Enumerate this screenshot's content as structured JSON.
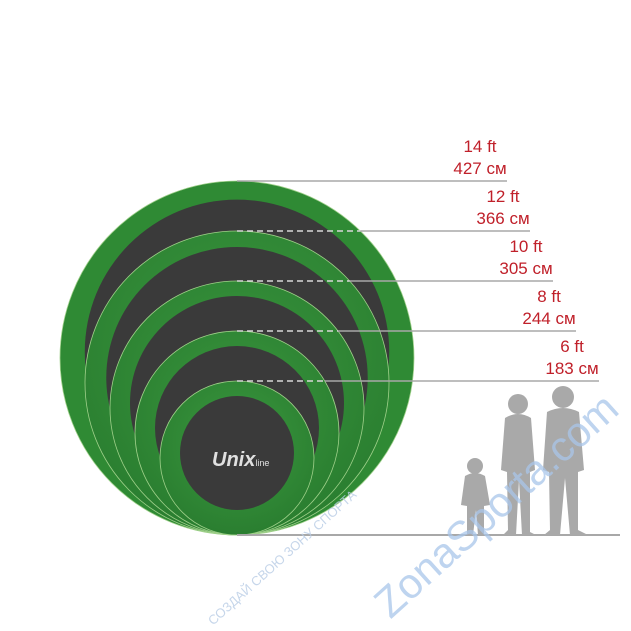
{
  "sizes": [
    {
      "ft": "14 ft",
      "cm": "427 см"
    },
    {
      "ft": "12 ft",
      "cm": "366 см"
    },
    {
      "ft": "10 ft",
      "cm": "305 см"
    },
    {
      "ft": "8 ft",
      "cm": "244 см"
    },
    {
      "ft": "6 ft",
      "cm": "183 см"
    }
  ],
  "logo": {
    "brand": "Unix",
    "suffix": "line"
  },
  "watermark": {
    "main": "ZonaSporta.com",
    "tagline": "СОЗДАЙ СВОЮ ЗОНУ СПОРТА"
  },
  "colors": {
    "mat_frame": "#2f8a34",
    "mat": "#3a3a3a",
    "labels": "#c0202a",
    "lines": "#a8a8a8",
    "silhouettes": "#a9a9a9"
  }
}
